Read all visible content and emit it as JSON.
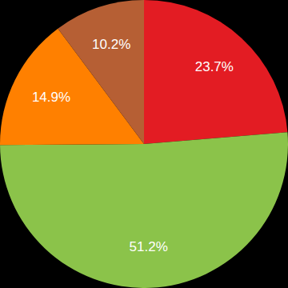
{
  "chart_data": {
    "type": "pie",
    "values": [
      23.7,
      51.2,
      14.9,
      10.2
    ],
    "value_labels": [
      "23.7%",
      "51.2%",
      "14.9%",
      "10.2%"
    ],
    "colors": [
      "#e31c23",
      "#8bc34a",
      "#ff8000",
      "#b65f34"
    ],
    "data_labels": true
  }
}
